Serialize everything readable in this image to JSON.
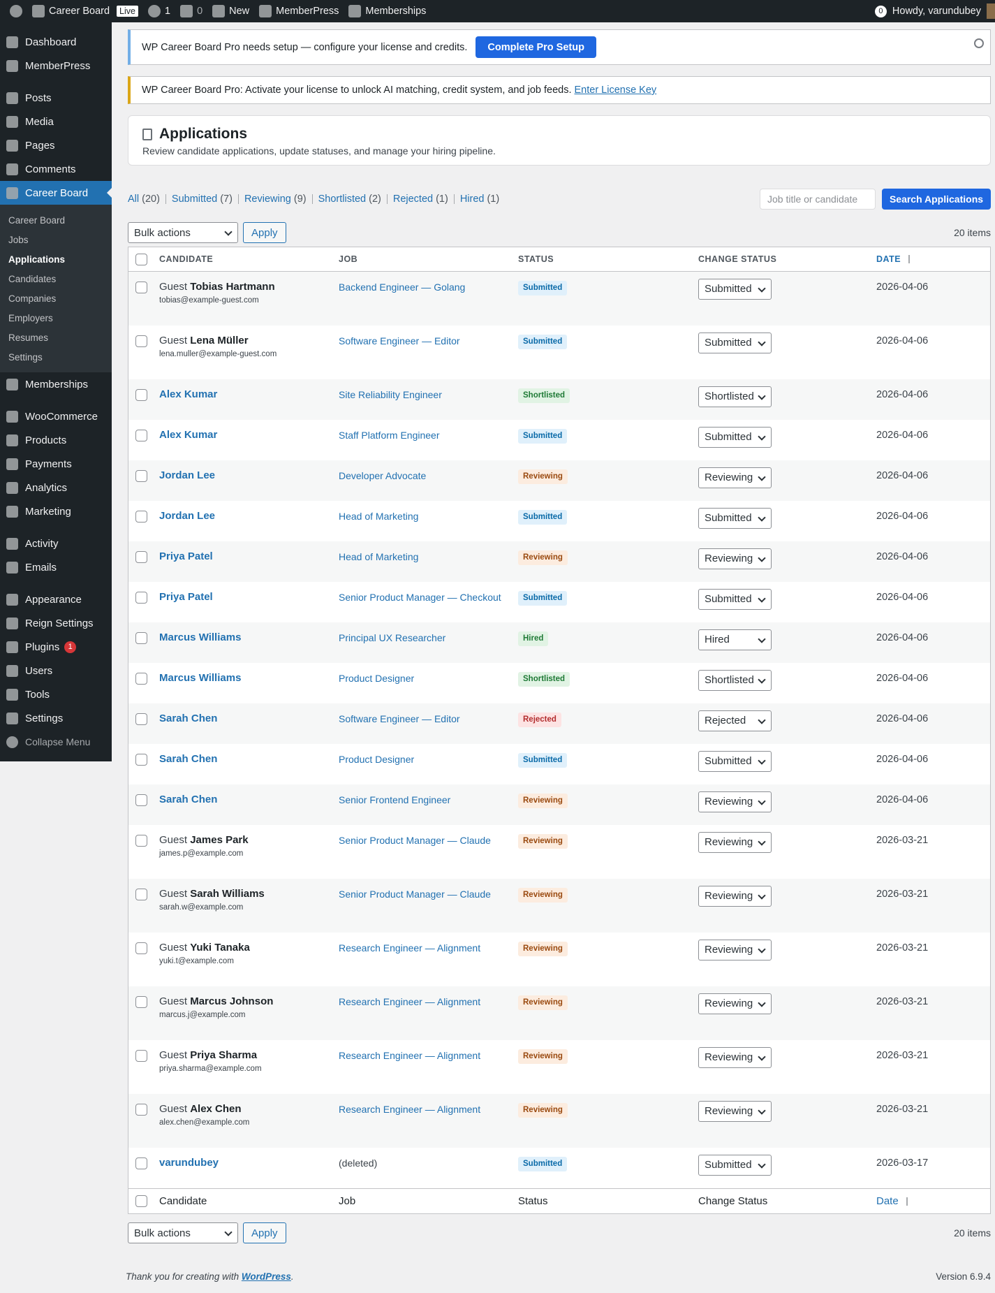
{
  "admin_bar": {
    "site": "Career Board",
    "live": "Live",
    "updates": "1",
    "comments": "0",
    "new": "New",
    "memberpress": "MemberPress",
    "memberships": "Memberships",
    "notifications": "0",
    "howdy": "Howdy, varundubey"
  },
  "menu": [
    [
      {
        "label": "Dashboard"
      },
      {
        "label": "MemberPress"
      }
    ],
    [
      {
        "label": "Posts"
      },
      {
        "label": "Media"
      },
      {
        "label": "Pages"
      },
      {
        "label": "Comments"
      },
      {
        "label": "Career Board",
        "active": true,
        "submenu": [
          {
            "label": "Career Board"
          },
          {
            "label": "Jobs"
          },
          {
            "label": "Applications",
            "current": true
          },
          {
            "label": "Candidates"
          },
          {
            "label": "Companies"
          },
          {
            "label": "Employers"
          },
          {
            "label": "Resumes"
          },
          {
            "label": "Settings"
          }
        ]
      },
      {
        "label": "Memberships"
      }
    ],
    [
      {
        "label": "WooCommerce"
      },
      {
        "label": "Products"
      },
      {
        "label": "Payments"
      },
      {
        "label": "Analytics"
      },
      {
        "label": "Marketing"
      }
    ],
    [
      {
        "label": "Activity"
      },
      {
        "label": "Emails"
      }
    ],
    [
      {
        "label": "Appearance"
      },
      {
        "label": "Reign Settings"
      },
      {
        "label": "Plugins",
        "badge": "1"
      },
      {
        "label": "Users"
      },
      {
        "label": "Tools"
      },
      {
        "label": "Settings"
      }
    ]
  ],
  "collapse": "Collapse Menu",
  "notices": [
    {
      "text": "WP Career Board Pro needs setup — configure your license and credits.",
      "button": "Complete Pro Setup"
    },
    {
      "text": "WP Career Board Pro: Activate your license to unlock AI matching, credit system, and job feeds.",
      "link": "Enter License Key"
    }
  ],
  "header": {
    "title": "Applications",
    "subtitle": "Review candidate applications, update statuses, and manage your hiring pipeline."
  },
  "filters": [
    {
      "label": "All",
      "count": "(20)"
    },
    {
      "label": "Submitted",
      "count": "(7)"
    },
    {
      "label": "Reviewing",
      "count": "(9)"
    },
    {
      "label": "Shortlisted",
      "count": "(2)"
    },
    {
      "label": "Rejected",
      "count": "(1)"
    },
    {
      "label": "Hired",
      "count": "(1)"
    }
  ],
  "search": {
    "placeholder": "Job title or candidate",
    "button": "Search Applications"
  },
  "bulk": {
    "select": "Bulk actions",
    "apply": "Apply",
    "items": "20 items"
  },
  "table": {
    "columns": [
      "Candidate",
      "Job",
      "Status",
      "Change Status",
      "Date"
    ],
    "rows": [
      {
        "guest": "Guest",
        "candidate": "Tobias Hartmann",
        "email": "tobias@example-guest.com",
        "job": "Backend Engineer — Golang",
        "status": "Submitted",
        "change": "Submitted",
        "date": "2026-04-06"
      },
      {
        "guest": "Guest",
        "candidate": "Lena Müller",
        "email": "lena.muller@example-guest.com",
        "job": "Software Engineer — Editor",
        "status": "Submitted",
        "change": "Submitted",
        "date": "2026-04-06"
      },
      {
        "candidate": "Alex Kumar",
        "job": "Site Reliability Engineer",
        "status": "Shortlisted",
        "change": "Shortlisted",
        "date": "2026-04-06"
      },
      {
        "candidate": "Alex Kumar",
        "job": "Staff Platform Engineer",
        "status": "Submitted",
        "change": "Submitted",
        "date": "2026-04-06"
      },
      {
        "candidate": "Jordan Lee",
        "job": "Developer Advocate",
        "status": "Reviewing",
        "change": "Reviewing",
        "date": "2026-04-06"
      },
      {
        "candidate": "Jordan Lee",
        "job": "Head of Marketing",
        "status": "Submitted",
        "change": "Submitted",
        "date": "2026-04-06"
      },
      {
        "candidate": "Priya Patel",
        "job": "Head of Marketing",
        "status": "Reviewing",
        "change": "Reviewing",
        "date": "2026-04-06"
      },
      {
        "candidate": "Priya Patel",
        "job": "Senior Product Manager — Checkout",
        "status": "Submitted",
        "change": "Submitted",
        "date": "2026-04-06"
      },
      {
        "candidate": "Marcus Williams",
        "job": "Principal UX Researcher",
        "status": "Hired",
        "change": "Hired",
        "date": "2026-04-06"
      },
      {
        "candidate": "Marcus Williams",
        "job": "Product Designer",
        "status": "Shortlisted",
        "change": "Shortlisted",
        "date": "2026-04-06"
      },
      {
        "candidate": "Sarah Chen",
        "job": "Software Engineer — Editor",
        "status": "Rejected",
        "change": "Rejected",
        "date": "2026-04-06"
      },
      {
        "candidate": "Sarah Chen",
        "job": "Product Designer",
        "status": "Submitted",
        "change": "Submitted",
        "date": "2026-04-06"
      },
      {
        "candidate": "Sarah Chen",
        "job": "Senior Frontend Engineer",
        "status": "Reviewing",
        "change": "Reviewing",
        "date": "2026-04-06"
      },
      {
        "guest": "Guest",
        "candidate": "James Park",
        "email": "james.p@example.com",
        "job": "Senior Product Manager — Claude",
        "status": "Reviewing",
        "change": "Reviewing",
        "date": "2026-03-21"
      },
      {
        "guest": "Guest",
        "candidate": "Sarah Williams",
        "email": "sarah.w@example.com",
        "job": "Senior Product Manager — Claude",
        "status": "Reviewing",
        "change": "Reviewing",
        "date": "2026-03-21"
      },
      {
        "guest": "Guest",
        "candidate": "Yuki Tanaka",
        "email": "yuki.t@example.com",
        "job": "Research Engineer — Alignment",
        "status": "Reviewing",
        "change": "Reviewing",
        "date": "2026-03-21"
      },
      {
        "guest": "Guest",
        "candidate": "Marcus Johnson",
        "email": "marcus.j@example.com",
        "job": "Research Engineer — Alignment",
        "status": "Reviewing",
        "change": "Reviewing",
        "date": "2026-03-21"
      },
      {
        "guest": "Guest",
        "candidate": "Priya Sharma",
        "email": "priya.sharma@example.com",
        "job": "Research Engineer — Alignment",
        "status": "Reviewing",
        "change": "Reviewing",
        "date": "2026-03-21"
      },
      {
        "guest": "Guest",
        "candidate": "Alex Chen",
        "email": "alex.chen@example.com",
        "job": "Research Engineer — Alignment",
        "status": "Reviewing",
        "change": "Reviewing",
        "date": "2026-03-21"
      },
      {
        "candidate": "varundubey",
        "job_note": "(deleted)",
        "status": "Submitted",
        "change": "Submitted",
        "date": "2026-03-17"
      }
    ]
  },
  "footer": {
    "thanks": "Thank you for creating with",
    "link": "WordPress",
    "end": ".",
    "version": "Version 6.9.4"
  }
}
